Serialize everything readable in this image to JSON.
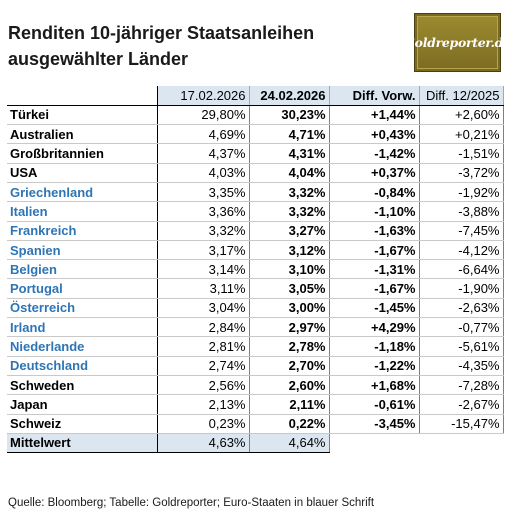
{
  "title": "Renditen 10-jähriger Staatsanleihen ausgewählter Länder",
  "logo_text": "Goldreporter.de",
  "headers": [
    "",
    "17.02.2026",
    "24.02.2026",
    "Diff. Vorw.",
    "Diff. 12/2025"
  ],
  "rows": [
    {
      "country": "Türkei",
      "euro": false,
      "v1": "29,80%",
      "v2": "30,23%",
      "d1": "+1,44%",
      "d2": "+2,60%"
    },
    {
      "country": "Australien",
      "euro": false,
      "v1": "4,69%",
      "v2": "4,71%",
      "d1": "+0,43%",
      "d2": "+0,21%"
    },
    {
      "country": "Großbritannien",
      "euro": false,
      "v1": "4,37%",
      "v2": "4,31%",
      "d1": "-1,42%",
      "d2": "-1,51%"
    },
    {
      "country": "USA",
      "euro": false,
      "v1": "4,03%",
      "v2": "4,04%",
      "d1": "+0,37%",
      "d2": "-3,72%"
    },
    {
      "country": "Griechenland",
      "euro": true,
      "v1": "3,35%",
      "v2": "3,32%",
      "d1": "-0,84%",
      "d2": "-1,92%"
    },
    {
      "country": "Italien",
      "euro": true,
      "v1": "3,36%",
      "v2": "3,32%",
      "d1": "-1,10%",
      "d2": "-3,88%"
    },
    {
      "country": "Frankreich",
      "euro": true,
      "v1": "3,32%",
      "v2": "3,27%",
      "d1": "-1,63%",
      "d2": "-7,45%"
    },
    {
      "country": "Spanien",
      "euro": true,
      "v1": "3,17%",
      "v2": "3,12%",
      "d1": "-1,67%",
      "d2": "-4,12%"
    },
    {
      "country": "Belgien",
      "euro": true,
      "v1": "3,14%",
      "v2": "3,10%",
      "d1": "-1,31%",
      "d2": "-6,64%"
    },
    {
      "country": "Portugal",
      "euro": true,
      "v1": "3,11%",
      "v2": "3,05%",
      "d1": "-1,67%",
      "d2": "-1,90%"
    },
    {
      "country": "Österreich",
      "euro": true,
      "v1": "3,04%",
      "v2": "3,00%",
      "d1": "-1,45%",
      "d2": "-2,63%"
    },
    {
      "country": "Irland",
      "euro": true,
      "v1": "2,84%",
      "v2": "2,97%",
      "d1": "+4,29%",
      "d2": "-0,77%"
    },
    {
      "country": "Niederlande",
      "euro": true,
      "v1": "2,81%",
      "v2": "2,78%",
      "d1": "-1,18%",
      "d2": "-5,61%"
    },
    {
      "country": "Deutschland",
      "euro": true,
      "v1": "2,74%",
      "v2": "2,70%",
      "d1": "-1,22%",
      "d2": "-4,35%"
    },
    {
      "country": "Schweden",
      "euro": false,
      "v1": "2,56%",
      "v2": "2,60%",
      "d1": "+1,68%",
      "d2": "-7,28%"
    },
    {
      "country": "Japan",
      "euro": false,
      "v1": "2,13%",
      "v2": "2,11%",
      "d1": "-0,61%",
      "d2": "-2,67%"
    },
    {
      "country": "Schweiz",
      "euro": false,
      "v1": "0,23%",
      "v2": "0,22%",
      "d1": "-3,45%",
      "d2": "-15,47%"
    }
  ],
  "mean": {
    "label": "Mittelwert",
    "v1": "4,63%",
    "v2": "4,64%"
  },
  "source": "Quelle: Bloomberg; Tabelle: Goldreporter; Euro-Staaten in blauer Schrift",
  "colors": {
    "euro_text": "#2e75b6",
    "header_bg": "#dce6f1",
    "logo_bg": "#7a6a1e"
  }
}
